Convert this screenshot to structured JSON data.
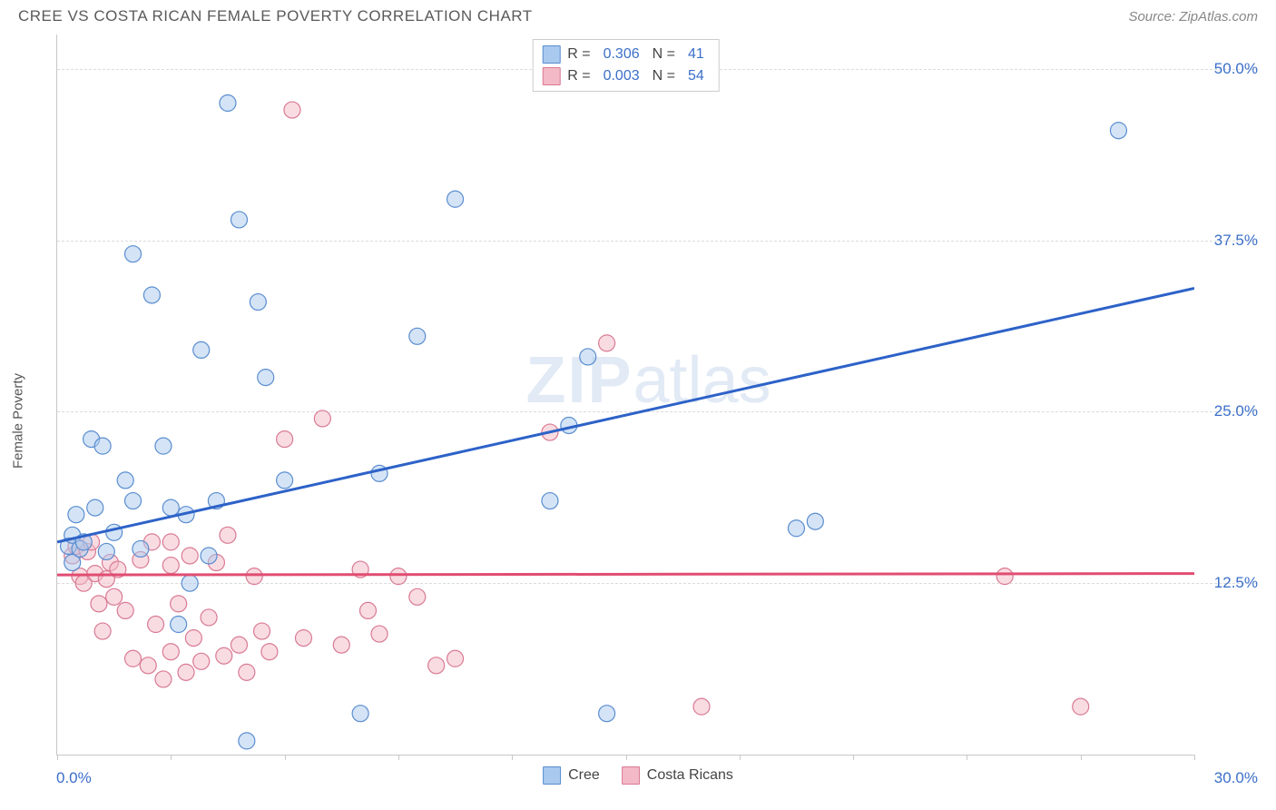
{
  "header": {
    "title": "CREE VS COSTA RICAN FEMALE POVERTY CORRELATION CHART",
    "source_label": "Source: ZipAtlas.com"
  },
  "watermark": {
    "bold_part": "ZIP",
    "light_part": "atlas"
  },
  "chart": {
    "type": "scatter",
    "y_label": "Female Poverty",
    "xlim": [
      0,
      30
    ],
    "ylim": [
      0,
      52.5
    ],
    "x_tick_positions": [
      0,
      3,
      6,
      9,
      12,
      15,
      18,
      21,
      24,
      27,
      30
    ],
    "x_axis_min_label": "0.0%",
    "x_axis_max_label": "30.0%",
    "y_gridlines": [
      12.5,
      25.0,
      37.5,
      50.0
    ],
    "y_tick_labels": [
      "12.5%",
      "25.0%",
      "37.5%",
      "50.0%"
    ],
    "background_color": "#ffffff",
    "grid_color": "#dcdcdc",
    "axis_color": "#c8c8c8",
    "tick_label_color": "#3b6fc9",
    "point_radius": 9,
    "point_opacity": 0.5,
    "trendline_width": 3,
    "series": [
      {
        "name": "Cree",
        "fill_color": "#a9c9ee",
        "stroke_color": "#5a8dd0",
        "line_color": "#2d62c8",
        "R": "0.306",
        "N": "41",
        "trendline": {
          "y_at_xmin": 15.5,
          "y_at_xmax": 34.0
        },
        "points": [
          [
            0.3,
            15.2
          ],
          [
            0.4,
            16.0
          ],
          [
            0.4,
            14.0
          ],
          [
            0.5,
            17.5
          ],
          [
            0.6,
            15.0
          ],
          [
            0.7,
            15.5
          ],
          [
            0.9,
            23.0
          ],
          [
            1.0,
            18.0
          ],
          [
            1.2,
            22.5
          ],
          [
            1.3,
            14.8
          ],
          [
            1.5,
            16.2
          ],
          [
            1.8,
            20.0
          ],
          [
            2.0,
            36.5
          ],
          [
            2.0,
            18.5
          ],
          [
            2.2,
            15.0
          ],
          [
            2.5,
            33.5
          ],
          [
            2.8,
            22.5
          ],
          [
            3.0,
            18.0
          ],
          [
            3.2,
            9.5
          ],
          [
            3.4,
            17.5
          ],
          [
            3.5,
            12.5
          ],
          [
            3.8,
            29.5
          ],
          [
            4.0,
            14.5
          ],
          [
            4.2,
            18.5
          ],
          [
            4.5,
            47.5
          ],
          [
            4.8,
            39.0
          ],
          [
            5.0,
            1.0
          ],
          [
            5.3,
            33.0
          ],
          [
            5.5,
            27.5
          ],
          [
            6.0,
            20.0
          ],
          [
            8.0,
            3.0
          ],
          [
            8.5,
            20.5
          ],
          [
            9.5,
            30.5
          ],
          [
            10.5,
            40.5
          ],
          [
            13.0,
            18.5
          ],
          [
            13.5,
            24.0
          ],
          [
            14.5,
            3.0
          ],
          [
            19.5,
            16.5
          ],
          [
            20.0,
            17.0
          ],
          [
            28.0,
            45.5
          ],
          [
            14.0,
            29.0
          ]
        ]
      },
      {
        "name": "Costa Ricans",
        "fill_color": "#f3b9c6",
        "stroke_color": "#d97a93",
        "line_color": "#e14d72",
        "R": "0.003",
        "N": "54",
        "trendline": {
          "y_at_xmin": 13.1,
          "y_at_xmax": 13.2
        },
        "points": [
          [
            0.4,
            14.5
          ],
          [
            0.5,
            15.2
          ],
          [
            0.6,
            13.0
          ],
          [
            0.7,
            12.5
          ],
          [
            0.8,
            14.8
          ],
          [
            0.9,
            15.5
          ],
          [
            1.0,
            13.2
          ],
          [
            1.1,
            11.0
          ],
          [
            1.2,
            9.0
          ],
          [
            1.3,
            12.8
          ],
          [
            1.4,
            14.0
          ],
          [
            1.5,
            11.5
          ],
          [
            1.6,
            13.5
          ],
          [
            1.8,
            10.5
          ],
          [
            2.0,
            7.0
          ],
          [
            2.2,
            14.2
          ],
          [
            2.4,
            6.5
          ],
          [
            2.5,
            15.5
          ],
          [
            2.6,
            9.5
          ],
          [
            2.8,
            5.5
          ],
          [
            3.0,
            13.8
          ],
          [
            3.0,
            7.5
          ],
          [
            3.2,
            11.0
          ],
          [
            3.4,
            6.0
          ],
          [
            3.5,
            14.5
          ],
          [
            3.6,
            8.5
          ],
          [
            3.8,
            6.8
          ],
          [
            4.0,
            10.0
          ],
          [
            4.2,
            14.0
          ],
          [
            4.4,
            7.2
          ],
          [
            4.5,
            16.0
          ],
          [
            4.8,
            8.0
          ],
          [
            5.0,
            6.0
          ],
          [
            5.2,
            13.0
          ],
          [
            5.4,
            9.0
          ],
          [
            5.6,
            7.5
          ],
          [
            6.0,
            23.0
          ],
          [
            6.2,
            47.0
          ],
          [
            6.5,
            8.5
          ],
          [
            7.0,
            24.5
          ],
          [
            7.5,
            8.0
          ],
          [
            8.0,
            13.5
          ],
          [
            8.2,
            10.5
          ],
          [
            8.5,
            8.8
          ],
          [
            9.0,
            13.0
          ],
          [
            9.5,
            11.5
          ],
          [
            10.0,
            6.5
          ],
          [
            10.5,
            7.0
          ],
          [
            13.0,
            23.5
          ],
          [
            14.5,
            30.0
          ],
          [
            17.0,
            3.5
          ],
          [
            25.0,
            13.0
          ],
          [
            27.0,
            3.5
          ],
          [
            3.0,
            15.5
          ]
        ]
      }
    ]
  },
  "legend_bottom": [
    {
      "label": "Cree",
      "fill": "#a9c9ee",
      "stroke": "#5a8dd0"
    },
    {
      "label": "Costa Ricans",
      "fill": "#f3b9c6",
      "stroke": "#d97a93"
    }
  ]
}
